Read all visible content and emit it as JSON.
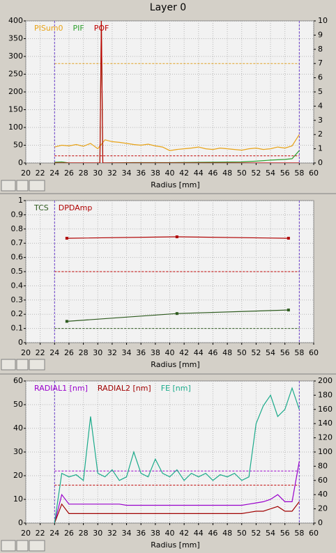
{
  "header": {
    "title": "Layer 0"
  },
  "chart_data": [
    {
      "type": "line",
      "xlabel": "Radius [mm]",
      "grid": true,
      "markers": false,
      "xlim": [
        20,
        60
      ],
      "xticks": [
        20,
        22,
        24,
        26,
        28,
        30,
        32,
        34,
        36,
        38,
        40,
        42,
        44,
        46,
        48,
        50,
        52,
        54,
        56,
        58,
        60
      ],
      "ylim": [
        0,
        400
      ],
      "yticks": [
        0,
        50,
        100,
        150,
        200,
        250,
        300,
        350,
        400
      ],
      "y2lim": [
        0,
        10
      ],
      "y2ticks": [
        0,
        1,
        2,
        3,
        4,
        5,
        6,
        7,
        8,
        9,
        10
      ],
      "vlines": [
        24,
        58
      ],
      "vline_color": "#6a3dcd",
      "hlines": [
        {
          "value": 280,
          "color": "#e0a020"
        },
        {
          "value": 20,
          "color": "#c00000"
        }
      ],
      "series": [
        {
          "name": "PISum0",
          "color": "#e8a317",
          "x": [
            24,
            25,
            26,
            27,
            28,
            29,
            30,
            31,
            32,
            33,
            34,
            35,
            36,
            37,
            38,
            39,
            40,
            41,
            42,
            43,
            44,
            45,
            46,
            47,
            48,
            49,
            50,
            51,
            52,
            53,
            54,
            55,
            56,
            57,
            58
          ],
          "values": [
            45,
            50,
            48,
            52,
            47,
            55,
            40,
            65,
            60,
            58,
            55,
            52,
            50,
            53,
            48,
            45,
            35,
            38,
            40,
            42,
            45,
            40,
            38,
            42,
            40,
            38,
            36,
            40,
            42,
            38,
            40,
            45,
            42,
            48,
            80
          ]
        },
        {
          "name": "PIF",
          "color": "#2ea02e",
          "x": [
            24,
            25,
            26,
            30.3,
            30.5,
            30.7,
            35,
            40,
            45,
            50,
            52,
            54,
            56,
            57,
            58
          ],
          "values": [
            2,
            3,
            0,
            0,
            400,
            0,
            1,
            1,
            2,
            3,
            5,
            8,
            10,
            12,
            35
          ]
        },
        {
          "name": "POF",
          "color": "#c00000",
          "x": [
            24,
            30.3,
            30.5,
            30.7,
            58
          ],
          "values": [
            0,
            0,
            400,
            0,
            0
          ]
        }
      ]
    },
    {
      "type": "line",
      "xlabel": "Radius [mm]",
      "grid": true,
      "markers": true,
      "xlim": [
        20,
        60
      ],
      "xticks": [
        20,
        22,
        24,
        26,
        28,
        30,
        32,
        34,
        36,
        38,
        40,
        42,
        44,
        46,
        48,
        50,
        52,
        54,
        56,
        58,
        60
      ],
      "ylim": [
        0,
        1
      ],
      "yticks": [
        0,
        0.1,
        0.2,
        0.3,
        0.4,
        0.5,
        0.6,
        0.7,
        0.8,
        0.9,
        1
      ],
      "vlines": [
        24,
        58
      ],
      "vline_color": "#6a3dcd",
      "hlines": [
        {
          "value": 0.5,
          "color": "#c00000"
        },
        {
          "value": 0.1,
          "color": "#2d5a1e"
        }
      ],
      "series": [
        {
          "name": "TCS",
          "color": "#2d5a1e",
          "x": [
            25.7,
            41,
            56.5
          ],
          "values": [
            0.15,
            0.205,
            0.23
          ]
        },
        {
          "name": "DPDAmp",
          "color": "#b00000",
          "x": [
            25.7,
            41,
            56.5
          ],
          "values": [
            0.735,
            0.745,
            0.735
          ]
        }
      ]
    },
    {
      "type": "line",
      "xlabel": "Radius [mm]",
      "grid": true,
      "markers": false,
      "xlim": [
        20,
        60
      ],
      "xticks": [
        20,
        22,
        24,
        26,
        28,
        30,
        32,
        34,
        36,
        38,
        40,
        42,
        44,
        46,
        48,
        50,
        52,
        54,
        56,
        58,
        60
      ],
      "ylim": [
        0,
        60
      ],
      "yticks": [
        0,
        10,
        20,
        30,
        40,
        50,
        60
      ],
      "y2lim": [
        0,
        200
      ],
      "y2ticks": [
        0,
        20,
        40,
        60,
        80,
        100,
        120,
        140,
        160,
        180,
        200
      ],
      "vlines": [
        24,
        58
      ],
      "vline_color": "#6a3dcd",
      "hlines": [
        {
          "value": 22,
          "color": "#9900cc"
        },
        {
          "value": 16,
          "color": "#c00000"
        }
      ],
      "series": [
        {
          "name": "RADIAL1 [nm]",
          "color": "#9900cc",
          "x": [
            24,
            25,
            26,
            27,
            28,
            29,
            30,
            31,
            32,
            33,
            34,
            35,
            36,
            37,
            38,
            39,
            40,
            41,
            42,
            43,
            44,
            45,
            46,
            47,
            48,
            49,
            50,
            51,
            52,
            53,
            54,
            55,
            56,
            57,
            58
          ],
          "values": [
            0,
            12,
            8,
            8,
            8,
            8,
            8,
            8,
            8,
            8,
            7.5,
            7.5,
            7.5,
            7.5,
            7.5,
            7.5,
            7.5,
            7.5,
            7.5,
            7.5,
            7.5,
            7.5,
            7.5,
            7.5,
            7.5,
            7.5,
            7.5,
            8,
            8.5,
            9,
            10,
            12,
            9,
            9,
            26
          ]
        },
        {
          "name": "RADIAL2 [nm]",
          "color": "#a00000",
          "x": [
            24,
            25,
            26,
            27,
            28,
            29,
            30,
            31,
            32,
            33,
            34,
            35,
            36,
            37,
            38,
            39,
            40,
            41,
            42,
            43,
            44,
            45,
            46,
            47,
            48,
            49,
            50,
            51,
            52,
            53,
            54,
            55,
            56,
            57,
            58
          ],
          "values": [
            0,
            8,
            4,
            4,
            4,
            4,
            4,
            4,
            4,
            4,
            4,
            4,
            4,
            4,
            4,
            4,
            4,
            4,
            4,
            4,
            4,
            4,
            4,
            4,
            4,
            4,
            4,
            4.5,
            5,
            5,
            6,
            7,
            5,
            5,
            9
          ]
        },
        {
          "name": "FE [nm]",
          "color": "#1aaa8a",
          "axis": "y2",
          "x": [
            24,
            25,
            26,
            27,
            28,
            29,
            30,
            31,
            32,
            33,
            34,
            35,
            36,
            37,
            38,
            39,
            40,
            41,
            42,
            43,
            44,
            45,
            46,
            47,
            48,
            49,
            50,
            51,
            52,
            53,
            54,
            55,
            56,
            57,
            58
          ],
          "values": [
            0,
            70,
            65,
            68,
            60,
            150,
            70,
            65,
            75,
            60,
            65,
            100,
            70,
            65,
            90,
            70,
            65,
            75,
            60,
            70,
            65,
            70,
            60,
            68,
            65,
            70,
            60,
            65,
            140,
            165,
            180,
            150,
            160,
            190,
            160
          ]
        }
      ]
    }
  ]
}
